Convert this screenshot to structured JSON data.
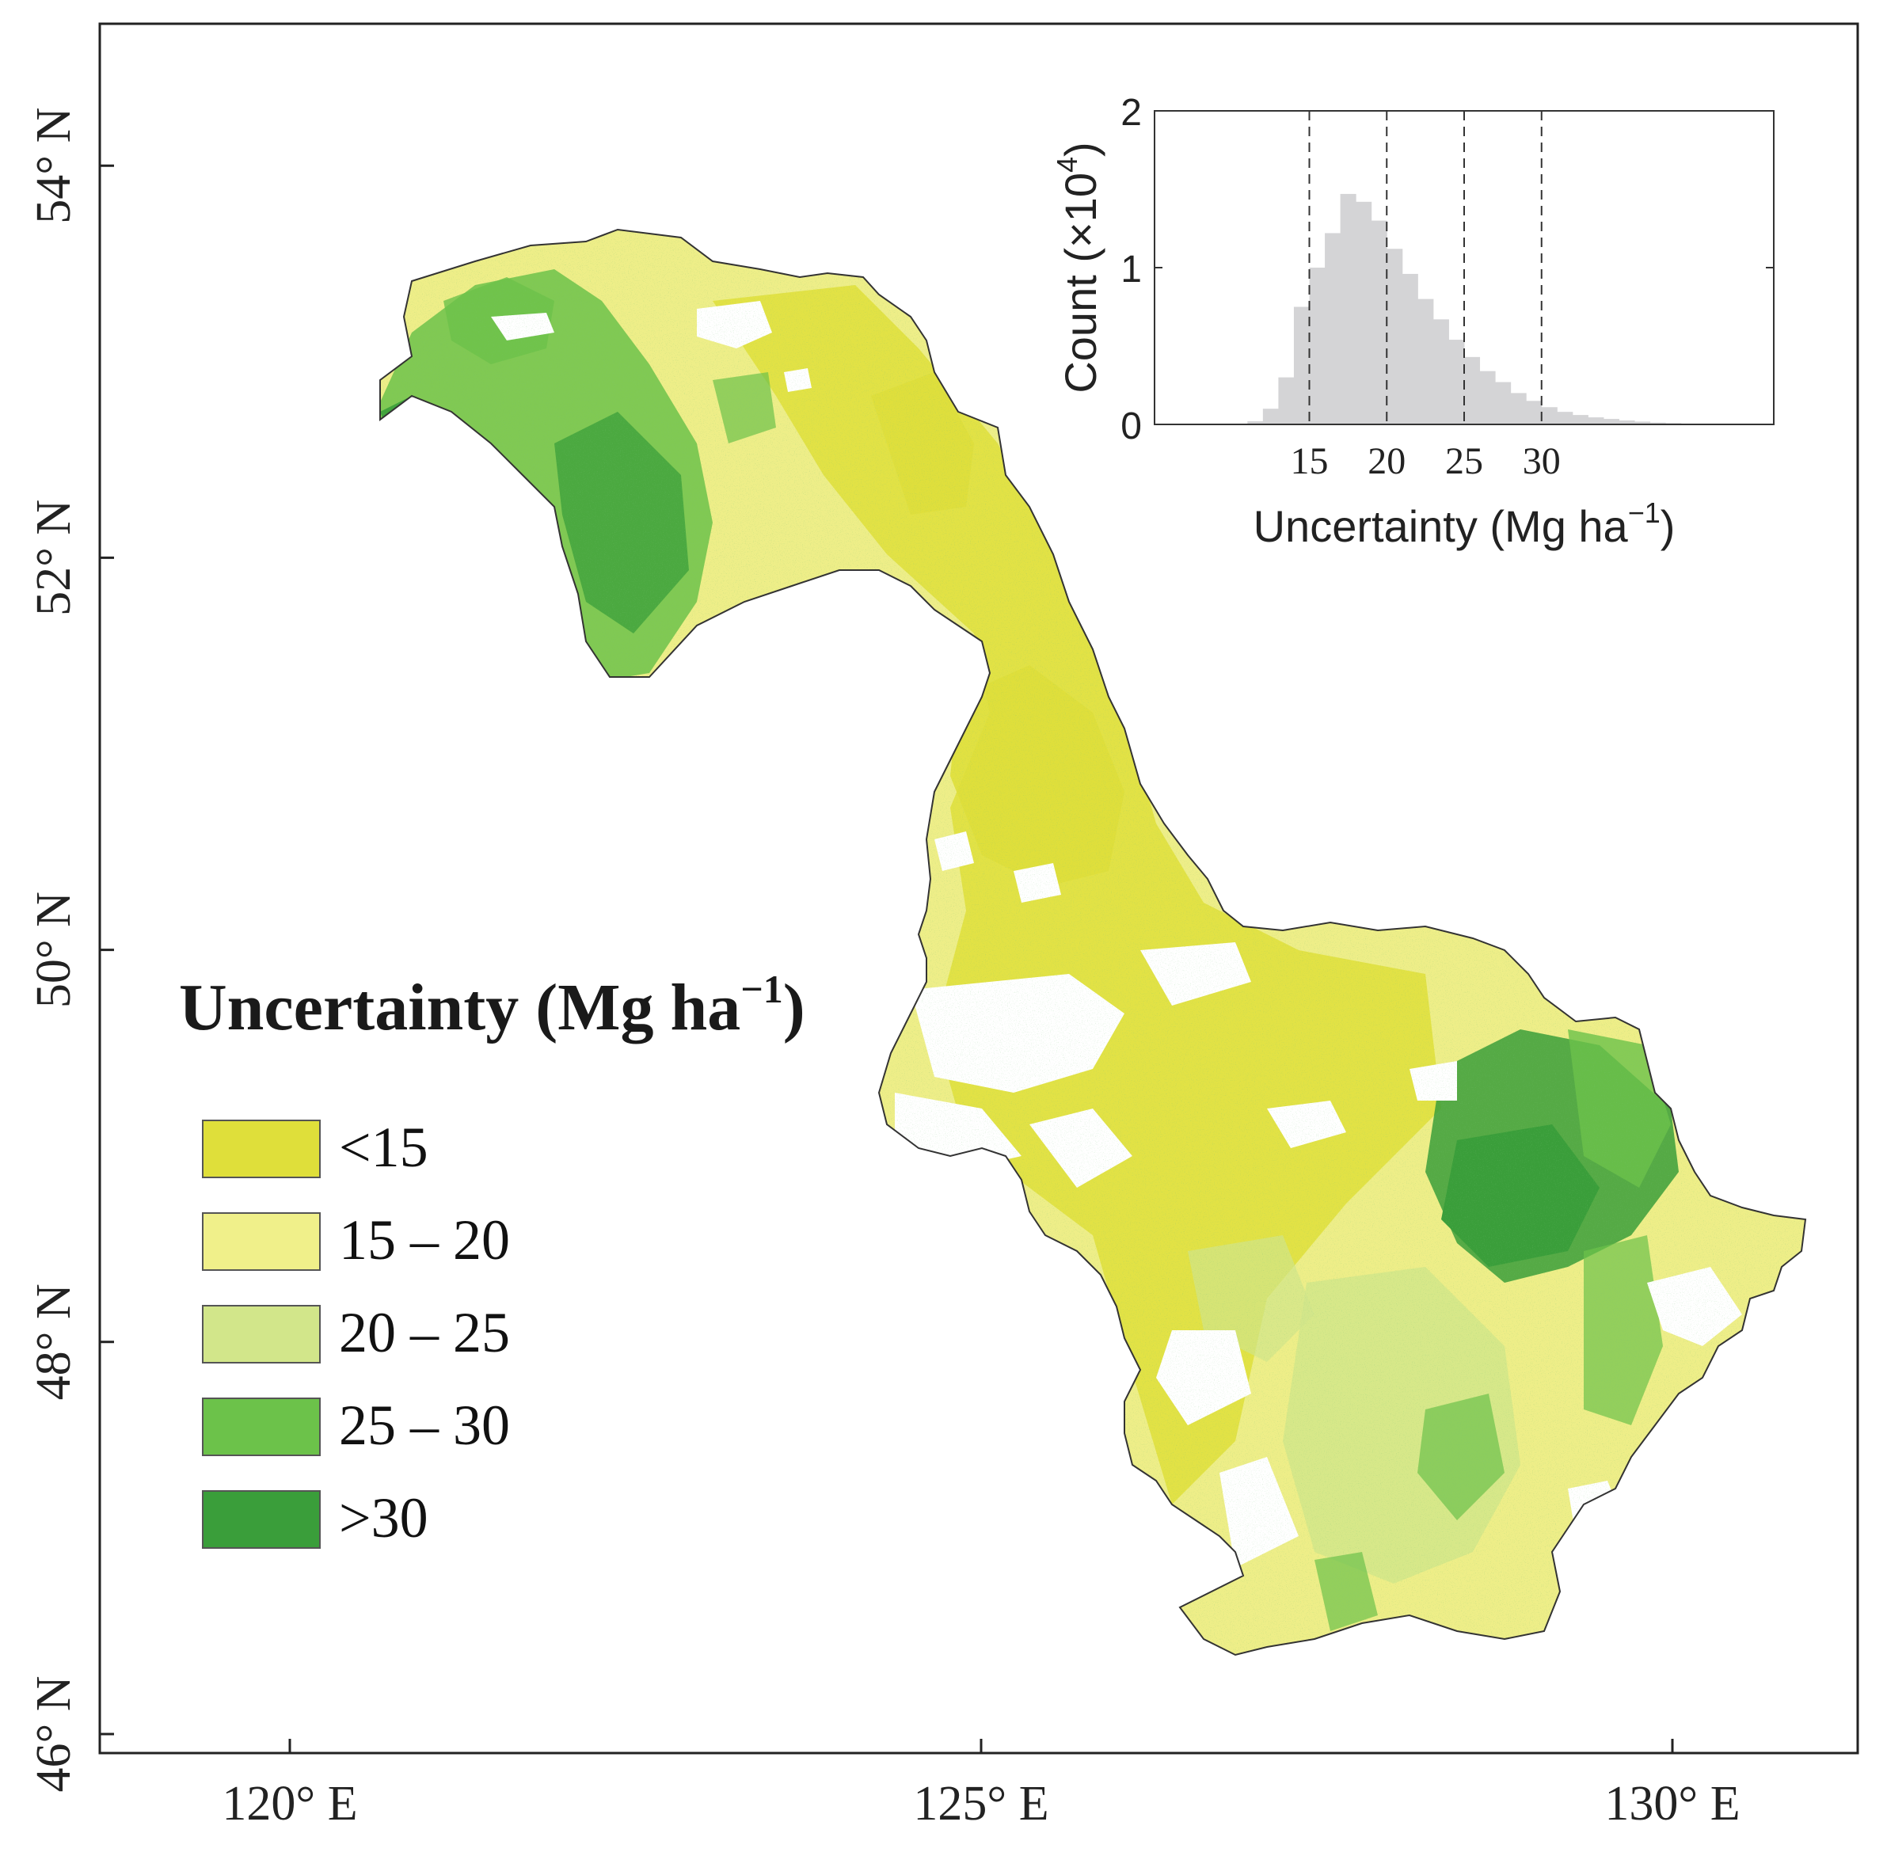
{
  "map": {
    "x_ticks": [
      {
        "label": "120° E",
        "lon": 120
      },
      {
        "label": "125° E",
        "lon": 125
      },
      {
        "label": "130° E",
        "lon": 130
      }
    ],
    "y_ticks": [
      {
        "label": "54° N",
        "lat": 54
      },
      {
        "label": "52° N",
        "lat": 52
      },
      {
        "label": "50° N",
        "lat": 50
      },
      {
        "label": "48° N",
        "lat": 48
      },
      {
        "label": "46° N",
        "lat": 46
      }
    ],
    "legend": {
      "title": "Uncertainty (Mg ha",
      "title_sup": "−1",
      "title_close": ")",
      "items": [
        {
          "label": "<15",
          "color": "#dfdf3a"
        },
        {
          "label": "15 – 20",
          "color": "#f0f08a"
        },
        {
          "label": "20 – 25",
          "color": "#d2e68a"
        },
        {
          "label": "25 – 30",
          "color": "#6cc24a"
        },
        {
          "label": ">30",
          "color": "#3a9e3a"
        }
      ]
    },
    "region_colors": {
      "outline": "#333333",
      "low": "#dfdf3a",
      "mid": "#eeee88",
      "midhigh": "#d2e68a",
      "high": "#6cc24a",
      "veryhigh": "#3a9e3a"
    }
  },
  "chart_data": {
    "type": "bar",
    "xlabel": "Uncertainty (Mg ha",
    "xlabel_sup": "−1",
    "xlabel_close": ")",
    "ylabel": "Count (×10",
    "ylabel_sup": "4",
    "ylabel_close": ")",
    "x_tick_labels": [
      "15",
      "20",
      "25",
      "30"
    ],
    "x_ticks": [
      15,
      20,
      25,
      30
    ],
    "y_tick_labels": [
      "0",
      "1",
      "2"
    ],
    "y_ticks": [
      0,
      1,
      2
    ],
    "xlim": [
      5,
      45
    ],
    "ylim": [
      0,
      2
    ],
    "dashed_lines": [
      15,
      20,
      25,
      30
    ],
    "bar_color": "#d4d4d6",
    "bins": [
      {
        "x": 11.5,
        "y": 0.02
      },
      {
        "x": 12.5,
        "y": 0.1
      },
      {
        "x": 13.5,
        "y": 0.3
      },
      {
        "x": 14.5,
        "y": 0.75
      },
      {
        "x": 15.5,
        "y": 1.0
      },
      {
        "x": 16.5,
        "y": 1.22
      },
      {
        "x": 17.5,
        "y": 1.47
      },
      {
        "x": 18.5,
        "y": 1.42
      },
      {
        "x": 19.5,
        "y": 1.3
      },
      {
        "x": 20.5,
        "y": 1.12
      },
      {
        "x": 21.5,
        "y": 0.96
      },
      {
        "x": 22.5,
        "y": 0.8
      },
      {
        "x": 23.5,
        "y": 0.67
      },
      {
        "x": 24.5,
        "y": 0.54
      },
      {
        "x": 25.5,
        "y": 0.43
      },
      {
        "x": 26.5,
        "y": 0.34
      },
      {
        "x": 27.5,
        "y": 0.27
      },
      {
        "x": 28.5,
        "y": 0.2
      },
      {
        "x": 29.5,
        "y": 0.15
      },
      {
        "x": 30.5,
        "y": 0.11
      },
      {
        "x": 31.5,
        "y": 0.08
      },
      {
        "x": 32.5,
        "y": 0.06
      },
      {
        "x": 33.5,
        "y": 0.045
      },
      {
        "x": 34.5,
        "y": 0.035
      },
      {
        "x": 35.5,
        "y": 0.025
      },
      {
        "x": 36.5,
        "y": 0.018
      },
      {
        "x": 37.5,
        "y": 0.012
      },
      {
        "x": 38.5,
        "y": 0.008
      },
      {
        "x": 39.5,
        "y": 0.005
      },
      {
        "x": 40.5,
        "y": 0.003
      }
    ]
  }
}
